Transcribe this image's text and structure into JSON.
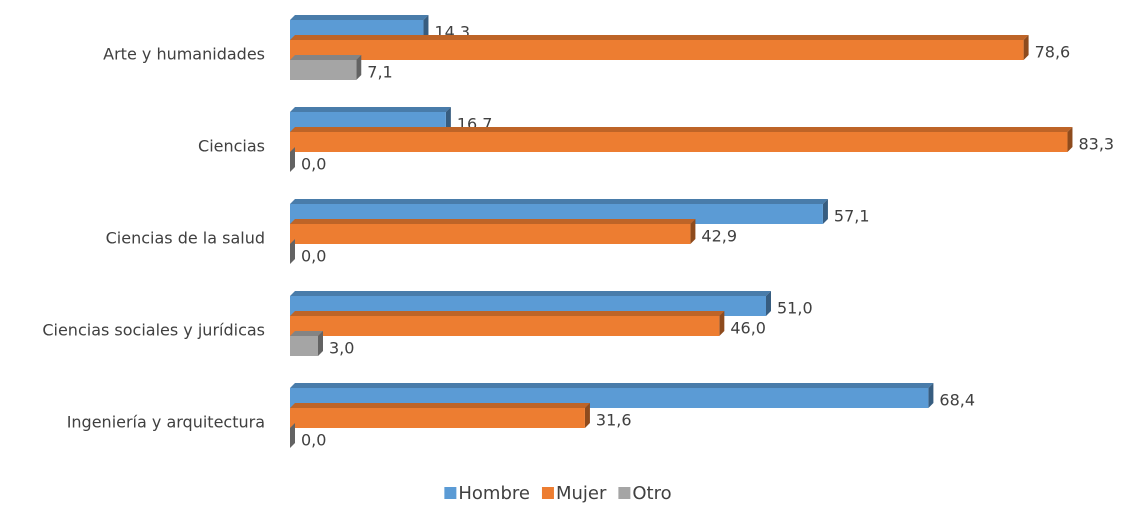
{
  "chart_data": {
    "type": "hbar",
    "categories": [
      "Arte y humanidades",
      "Ciencias",
      "Ciencias de la salud",
      "Ciencias sociales y jurídicas",
      "Ingeniería y arquitectura"
    ],
    "series": [
      {
        "name": "Hombre",
        "color": "#5b9bd5",
        "values": [
          14.3,
          16.7,
          57.1,
          51.0,
          68.4
        ],
        "value_labels": [
          "14,3",
          "16,7",
          "57,1",
          "51,0",
          "68,4"
        ]
      },
      {
        "name": "Mujer",
        "color": "#ed7d31",
        "values": [
          78.6,
          83.3,
          42.9,
          46.0,
          31.6
        ],
        "value_labels": [
          "78,6",
          "83,3",
          "42,9",
          "46,0",
          "31,6"
        ]
      },
      {
        "name": "Otro",
        "color": "#a5a5a5",
        "values": [
          7.1,
          0.0,
          0.0,
          3.0,
          0.0
        ],
        "value_labels": [
          "7,1",
          "0,0",
          "0,0",
          "3,0",
          "0,0"
        ]
      }
    ],
    "xlim": [
      0,
      90
    ],
    "legend": "bottom"
  }
}
